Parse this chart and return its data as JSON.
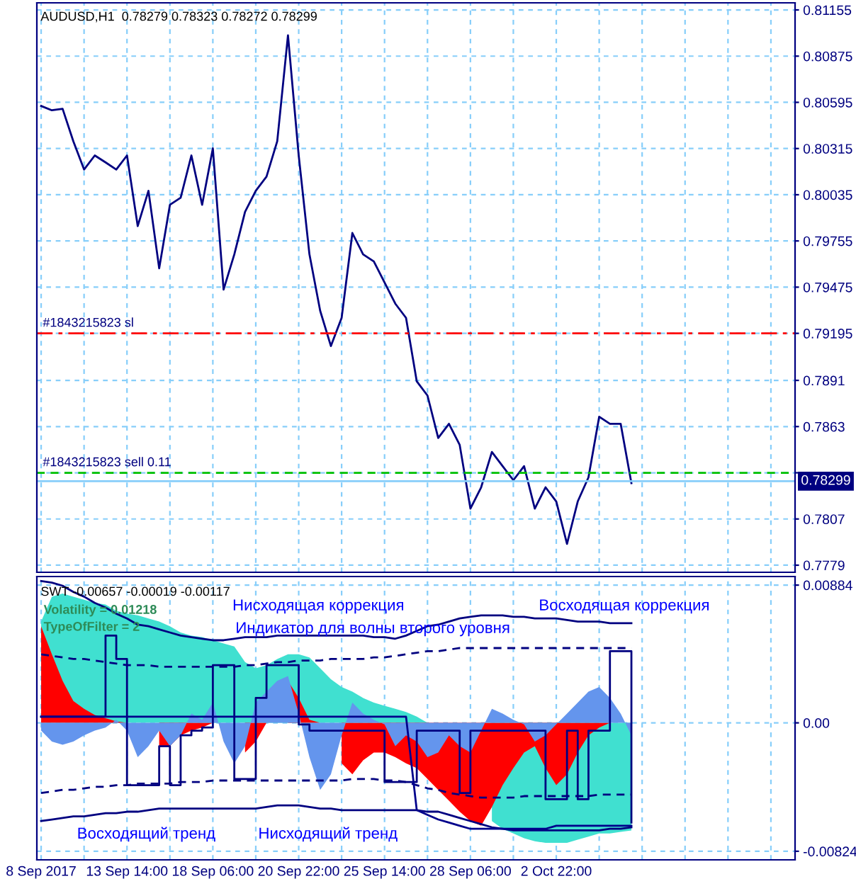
{
  "chart_data": [
    {
      "type": "line",
      "title": "AUDUSD,H1  0.78279 0.78323 0.78272 0.78299",
      "series": [
        {
          "color": "#000080",
          "values": [
            0.80573,
            0.80547,
            0.80556,
            0.80359,
            0.80188,
            0.80273,
            0.80231,
            0.80188,
            0.80273,
            0.79845,
            0.80059,
            0.79589,
            0.79974,
            0.80017,
            0.80273,
            0.79974,
            0.80316,
            0.7946,
            0.79674,
            0.79931,
            0.80059,
            0.80145,
            0.80359,
            0.81001,
            0.80273,
            0.79674,
            0.79332,
            0.79118,
            0.79289,
            0.79803,
            0.79674,
            0.79631,
            0.79503,
            0.79375,
            0.79289,
            0.78904,
            0.78818,
            0.78561,
            0.78647,
            0.78519,
            0.78133,
            0.78262,
            0.78476,
            0.7839,
            0.78305,
            0.7839,
            0.78133,
            0.78262,
            0.78176,
            0.77919,
            0.78176,
            0.78322,
            0.7869,
            0.78647,
            0.78647,
            0.78287
          ]
        }
      ],
      "ylim": [
        0.77747,
        0.81198
      ],
      "yticks": [
        0.7779,
        0.7807,
        {
          "value": 0.7835,
          "label": null
        },
        0.7863,
        0.7891,
        0.79195,
        0.79475,
        0.79755,
        0.80035,
        0.80315,
        0.80595,
        0.80875,
        0.81155
      ],
      "ref_lines": [
        {
          "axis": "y",
          "value": 0.79195,
          "label": "#1843215823 sl",
          "color": "#ff0000",
          "line_style": "dashdot"
        },
        {
          "axis": "y",
          "value": 0.7835,
          "label": "#1843215823 sell 0.11",
          "color": "#00c000",
          "line_style": "dashed"
        },
        {
          "axis": "y",
          "value": 0.78299,
          "label": "0.78299",
          "color": "#87cefa",
          "line_style": "solid"
        }
      ],
      "grid": true,
      "tick_labels": "y"
    },
    {
      "type": "area",
      "title": "SWT -0.00657 -0.00019 -0.00117",
      "categories": [
        "8 Sep 2017",
        null,
        null,
        null,
        null,
        null,
        null,
        null,
        "13 Sep 14:00",
        null,
        null,
        null,
        null,
        null,
        null,
        null,
        "18 Sep 06:00",
        null,
        null,
        null,
        null,
        null,
        null,
        null,
        "20 Sep 22:00",
        null,
        null,
        null,
        null,
        null,
        null,
        null,
        "25 Sep 14:00",
        null,
        null,
        null,
        null,
        null,
        null,
        null,
        "28 Sep 06:00",
        null,
        null,
        null,
        null,
        null,
        null,
        null,
        "2 Oct 22:00",
        null,
        null,
        null,
        null,
        null,
        null,
        null
      ],
      "series": [
        {
          "type": "area",
          "color": "#40e0d0",
          "values": [
            0.0065,
            0.0081,
            0.0083,
            0.0081,
            0.0079,
            0.0077,
            0.0076,
            0.0072,
            0.007,
            0.0069,
            0.0067,
            0.0065,
            0.0062,
            0.0058,
            0.0056,
            0.0055,
            0.0053,
            0.0051,
            0.0049,
            0.0039,
            0.0035,
            0.0037,
            0.0041,
            0.0044,
            0.0044,
            0.0042,
            0.0035,
            0.0028,
            0.0023,
            0.002,
            0.0016,
            0.0013,
            0.0011,
            0.0009,
            0.0007,
            0.0004,
            0,
            null,
            null,
            null,
            null,
            null,
            -0.0063,
            -0.0068,
            -0.0071,
            -0.0074,
            -0.0076,
            -0.0077,
            -0.0077,
            -0.0077,
            -0.0075,
            -0.0073,
            -0.0071,
            -0.0071,
            -0.007,
            -0.0069
          ]
        },
        {
          "type": "area",
          "color": "#ff0000",
          "values": [
            0.0062,
            0.0044,
            0.0027,
            0.0014,
            0.0009,
            0.0005,
            0.0003,
            0.0001,
            0,
            0,
            null,
            -0.0015,
            -0.0015,
            -0.0008,
            -0.0005,
            -0.0003,
            0,
            0,
            null,
            -0.0019,
            -0.0012,
            0,
            null,
            0.0027,
            0.0016,
            0.0002,
            0,
            null,
            -0.0026,
            -0.0033,
            -0.0024,
            -0.0019,
            -0.0019,
            -0.0022,
            -0.0026,
            -0.0029,
            -0.0036,
            -0.0043,
            -0.005,
            -0.0057,
            -0.0063,
            -0.0066,
            -0.0054,
            -0.004,
            -0.0029,
            -0.0019,
            -0.0015,
            -0.0029,
            -0.004,
            -0.0033,
            -0.0019,
            -0.0008,
            -0.0003,
            0,
            0,
            0
          ]
        },
        {
          "type": "area",
          "color": "#6495ed",
          "values": [
            -0.0005,
            -0.0012,
            -0.0014,
            -0.0012,
            -0.0008,
            -0.0005,
            -0.0003,
            0.0002,
            -0.0005,
            -0.0022,
            -0.0015,
            -0.0005,
            -0.0015,
            -0.0008,
            0.0006,
            0.0002,
            0.0013,
            -0.0012,
            -0.0026,
            -0.0015,
            0.0013,
            0.002,
            0.0027,
            0.003,
            0.0006,
            -0.0022,
            -0.0043,
            -0.0033,
            -0.0008,
            0.0013,
            0.0006,
            0.0002,
            -0.0001,
            -0.0015,
            -0.0008,
            -0.0012,
            -0.0022,
            -0.0019,
            -0.0008,
            -0.0015,
            -0.0019,
            -0.0005,
            0.0009,
            0.0006,
            0.0002,
            -0.0001,
            -0.0012,
            -0.0008,
            -0.0001,
            0.0006,
            0.0013,
            0.002,
            0.0023,
            0.0016,
            0.0006,
            -0.0008
          ]
        },
        {
          "type": "line",
          "color": "#000080",
          "line_style": "solid",
          "values": [
            0.0091,
            0.009,
            0.0088,
            0.0084,
            0.0081,
            0.0077,
            0.0074,
            0.007,
            0.0067,
            0.0063,
            0.0062,
            0.006,
            0.0058,
            0.0056,
            0.0055,
            0.0054,
            0.0053,
            0.0053,
            0.0054,
            0.0055,
            0.0055,
            0.0055,
            0.0056,
            0.0056,
            0.0056,
            0.0056,
            0.0056,
            0.0056,
            0.0056,
            0.0056,
            0.0056,
            0.0055,
            0.0055,
            0.0054,
            0.0056,
            0.0059,
            0.0062,
            0.0063,
            0.0065,
            0.0067,
            0.0068,
            0.0069,
            0.0069,
            0.0069,
            0.0068,
            0.0068,
            0.0067,
            0.0067,
            0.0067,
            0.0066,
            0.0065,
            0.0065,
            0.0065,
            0.0064,
            0.0064,
            0.0064
          ]
        },
        {
          "type": "line",
          "color": "#000080",
          "line_style": "dashed",
          "values": [
            0.0044,
            0.0043,
            0.0042,
            0.0041,
            0.0041,
            0.004,
            0.0039,
            0.0038,
            0.0037,
            0.0037,
            0.0037,
            0.0036,
            0.0036,
            0.0036,
            0.0036,
            0.0036,
            0.0036,
            0.0036,
            0.0036,
            0.0037,
            0.0037,
            0.0038,
            0.0039,
            0.0039,
            0.004,
            0.004,
            0.004,
            0.0041,
            0.0041,
            0.0041,
            0.0041,
            0.0042,
            0.0042,
            0.0043,
            0.0044,
            0.0045,
            0.0046,
            0.0046,
            0.0047,
            0.0048,
            0.0048,
            0.0048,
            0.0048,
            0.0048,
            0.0048,
            0.0048,
            0.0048,
            0.0048,
            0.0048,
            0.0048,
            0.0048,
            0.0048,
            0.0048,
            0.0048,
            0.0048,
            0.0048
          ]
        },
        {
          "type": "line",
          "color": "#000080",
          "line_style": "dashed",
          "values": [
            -0.0045,
            -0.0044,
            -0.0043,
            -0.0043,
            -0.0042,
            -0.0041,
            -0.0041,
            -0.004,
            -0.004,
            -0.0039,
            -0.0039,
            -0.0039,
            -0.0039,
            -0.0038,
            -0.0038,
            -0.0038,
            -0.0037,
            -0.0037,
            -0.0037,
            -0.0037,
            -0.0037,
            -0.0037,
            -0.0037,
            -0.0037,
            -0.0037,
            -0.0037,
            -0.0037,
            -0.0037,
            -0.0037,
            -0.0036,
            -0.0036,
            -0.0036,
            -0.0037,
            -0.0037,
            -0.0038,
            -0.004,
            -0.0042,
            -0.0043,
            -0.0045,
            -0.0046,
            -0.0047,
            -0.0048,
            -0.0048,
            -0.0048,
            -0.0048,
            -0.0047,
            -0.0047,
            -0.0047,
            -0.0047,
            -0.0047,
            -0.0047,
            -0.0047,
            -0.0046,
            -0.0046,
            -0.0046,
            -0.0046
          ]
        },
        {
          "type": "line",
          "color": "#000080",
          "line_style": "solid",
          "values": [
            -0.0063,
            -0.0062,
            -0.0061,
            -0.006,
            -0.006,
            -0.0059,
            -0.0058,
            -0.0058,
            -0.0057,
            -0.0057,
            -0.0056,
            -0.0055,
            -0.0055,
            -0.0055,
            -0.0055,
            -0.0055,
            -0.0055,
            -0.0055,
            -0.0055,
            -0.0055,
            -0.0055,
            -0.0054,
            -0.0053,
            -0.0053,
            -0.0053,
            -0.0054,
            -0.0055,
            -0.0055,
            -0.0056,
            -0.0056,
            -0.0056,
            -0.0056,
            -0.0056,
            -0.0056,
            -0.0056,
            -0.0056,
            -0.0057,
            -0.0057,
            -0.0059,
            -0.0061,
            -0.0063,
            -0.0065,
            -0.0067,
            -0.0068,
            -0.0069,
            -0.0069,
            -0.0069,
            -0.0069,
            -0.0069,
            -0.0069,
            -0.0069,
            -0.0069,
            -0.0069,
            -0.0068,
            -0.0068,
            -0.0067
          ]
        },
        {
          "type": "step",
          "color": "#000080",
          "line_style": "solid",
          "values": [
            0.0004,
            0.0004,
            0.0004,
            0.0004,
            0.0004,
            0.0004,
            0.0056,
            0.0041,
            -0.004,
            -0.004,
            -0.004,
            -0.0015,
            -0.004,
            -0.0008,
            -0.0005,
            -0.0003,
            0.0037,
            0.0037,
            -0.0036,
            -0.0036,
            0.0016,
            0.0037,
            0.0037,
            0.0037,
            -0.0001,
            -0.0005,
            -0.0005,
            -0.0005,
            -0.0005,
            -0.0005,
            -0.0005,
            -0.0005,
            -0.0038,
            -0.0038,
            -0.0038,
            -0.0005,
            -0.0005,
            -0.0005,
            -0.0005,
            -0.0045,
            -0.0005,
            -0.0005,
            -0.0005,
            -0.0005,
            -0.0005,
            -0.0005,
            -0.0005,
            -0.0049,
            -0.0049,
            -0.0005,
            -0.0049,
            -0.0005,
            -0.0005,
            0.0046,
            0.0046,
            -0.0064
          ]
        },
        {
          "type": "line",
          "color": "#00008b",
          "line_style": "solid",
          "values": [
            0.0004,
            0.0004,
            0.0004,
            0.0004,
            0.0004,
            0.0004,
            0.0004,
            0.0004,
            0.0004,
            0.0004,
            0.0004,
            0.0004,
            0.0004,
            0.0004,
            0.0004,
            0.0004,
            0.0004,
            0.0004,
            0.0004,
            0.0004,
            0.0004,
            0.0004,
            0.0004,
            0.0004,
            0.0004,
            0.0004,
            0.0004,
            0.0004,
            0.0004,
            0.0004,
            0.0004,
            0.0004,
            0.0004,
            0.0004,
            0.0004,
            -0.0056,
            -0.0059,
            -0.0062,
            -0.0064,
            -0.0066,
            -0.0068,
            -0.0068,
            -0.0068,
            -0.0068,
            -0.0068,
            -0.0068,
            -0.0068,
            -0.0068,
            -0.0066,
            -0.0066,
            -0.0066,
            -0.0066,
            -0.0066,
            -0.0066,
            -0.0066,
            -0.0066
          ]
        }
      ],
      "ylim": [
        -0.00879,
        0.00939
      ],
      "yticks": [
        -0.00824,
        {
          "value": 0,
          "label": "0.00"
        },
        0.00884
      ],
      "annotations": [
        "Volatility = 0.01218",
        "TypeOfFilter = 2",
        "Нисходящая коррекция",
        "Индикатор для волны второго уровня",
        "Восходящая коррекция",
        "Восходящий тренд",
        "Нисходящий тренд"
      ],
      "grid": true
    }
  ]
}
